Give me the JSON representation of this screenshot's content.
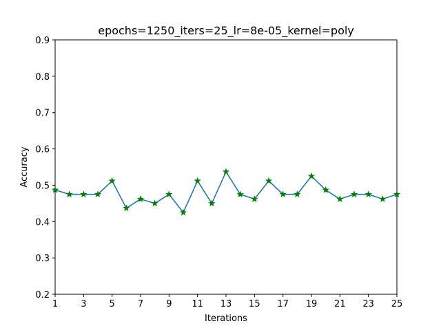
{
  "chart_data": {
    "type": "line",
    "title": "epochs=1250_iters=25_lr=8e-05_kernel=poly",
    "xlabel": "Iterations",
    "ylabel": "Accuracy",
    "xlim": [
      1,
      25
    ],
    "ylim": [
      0.2,
      0.9
    ],
    "xticks": [
      1,
      3,
      5,
      7,
      9,
      11,
      13,
      15,
      17,
      19,
      21,
      23,
      25
    ],
    "yticks": [
      0.2,
      0.3,
      0.4,
      0.5,
      0.6,
      0.7,
      0.8,
      0.9
    ],
    "ytick_labels": [
      "0.2",
      "0.3",
      "0.4",
      "0.5",
      "0.6",
      "0.7",
      "0.8",
      "0.9"
    ],
    "grid": false,
    "line_color": "#1f77b4",
    "marker_color": "#008000",
    "marker": "star",
    "x": [
      1,
      2,
      3,
      4,
      5,
      6,
      7,
      8,
      9,
      10,
      11,
      12,
      13,
      14,
      15,
      16,
      17,
      18,
      19,
      20,
      21,
      22,
      23,
      24,
      25
    ],
    "y": [
      0.487,
      0.475,
      0.475,
      0.475,
      0.512,
      0.437,
      0.462,
      0.45,
      0.475,
      0.425,
      0.512,
      0.45,
      0.537,
      0.475,
      0.462,
      0.512,
      0.475,
      0.475,
      0.525,
      0.487,
      0.462,
      0.475,
      0.475,
      0.462,
      0.475
    ]
  }
}
